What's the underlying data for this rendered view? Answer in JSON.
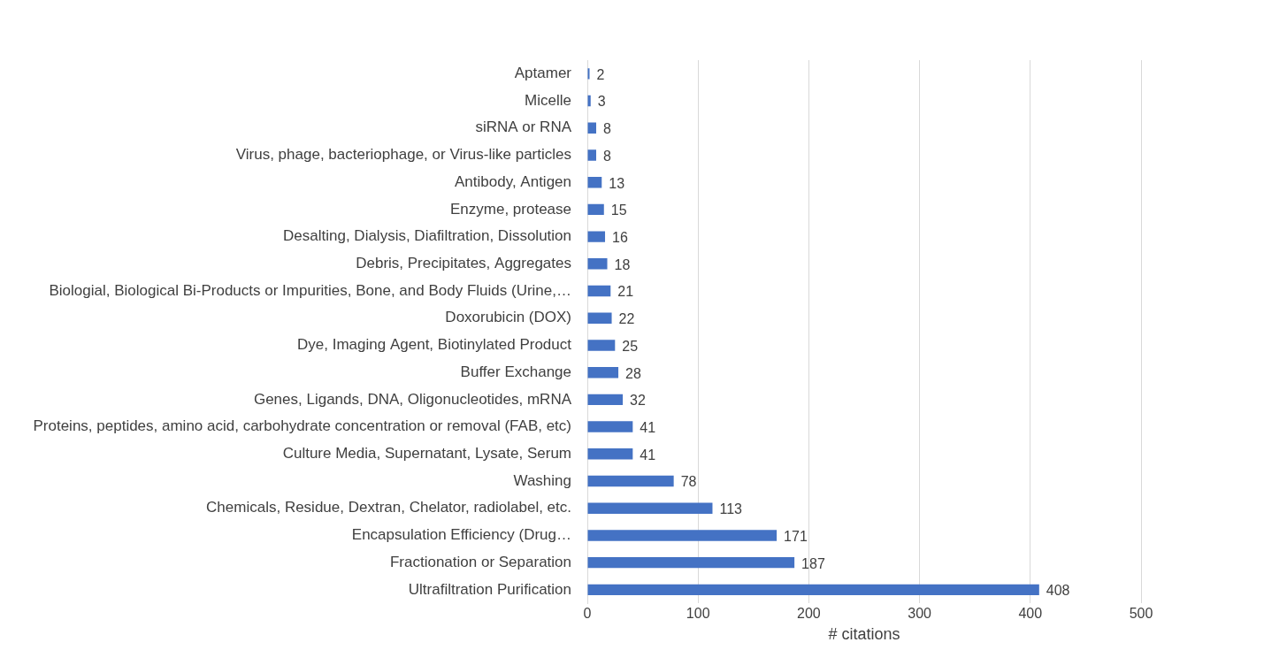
{
  "chart_data": {
    "type": "bar",
    "orientation": "horizontal",
    "x_label": "# citations",
    "categories": [
      "Aptamer",
      "Micelle",
      "siRNA or RNA",
      "Virus, phage, bacteriophage, or Virus-like particles",
      "Antibody, Antigen",
      "Enzyme, protease",
      "Desalting, Dialysis, Diafiltration, Dissolution",
      "Debris, Precipitates, Aggregates",
      "Biologial, Biological Bi-Products or Impurities, Bone, and Body Fluids (Urine,…",
      "Doxorubicin (DOX)",
      "Dye, Imaging Agent, Biotinylated Product",
      "Buffer Exchange",
      "Genes, Ligands, DNA, Oligonucleotides, mRNA",
      "Proteins, peptides, amino acid, carbohydrate concentration or removal (FAB, etc)",
      "Culture Media, Supernatant, Lysate, Serum",
      "Washing",
      "Chemicals, Residue, Dextran, Chelator, radiolabel, etc.",
      "Encapsulation Efficiency (Drug…",
      "Fractionation or Separation",
      "Ultrafiltration Purification"
    ],
    "values": [
      2,
      3,
      8,
      8,
      13,
      15,
      16,
      18,
      21,
      22,
      25,
      28,
      32,
      41,
      41,
      78,
      113,
      171,
      187,
      408
    ],
    "color": "#4472c4",
    "xlim": [
      0,
      500
    ],
    "xticks": [
      0,
      100,
      200,
      300,
      400,
      500
    ],
    "grid": true,
    "data_labels": true
  }
}
